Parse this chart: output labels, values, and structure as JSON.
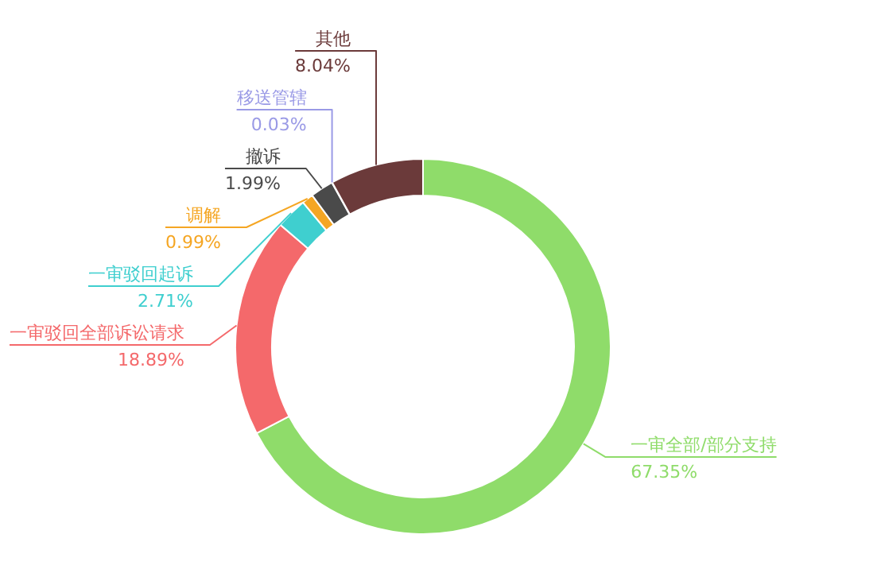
{
  "chart_data": {
    "type": "donut",
    "categories": [
      "一审全部/部分支持",
      "一审驳回全部诉讼请求",
      "一审驳回起诉",
      "调解",
      "撤诉",
      "移送管辖",
      "其他"
    ],
    "values": [
      67.35,
      18.89,
      2.71,
      0.99,
      1.99,
      0.03,
      8.04
    ],
    "colors": [
      "#8fdc6a",
      "#f4696b",
      "#3fcfcf",
      "#f5a623",
      "#4a4a4a",
      "#9a9ae6",
      "#6b3a3a"
    ],
    "value_labels": [
      "67.35%",
      "18.89%",
      "2.71%",
      "0.99%",
      "1.99%",
      "0.03%",
      "8.04%"
    ]
  }
}
